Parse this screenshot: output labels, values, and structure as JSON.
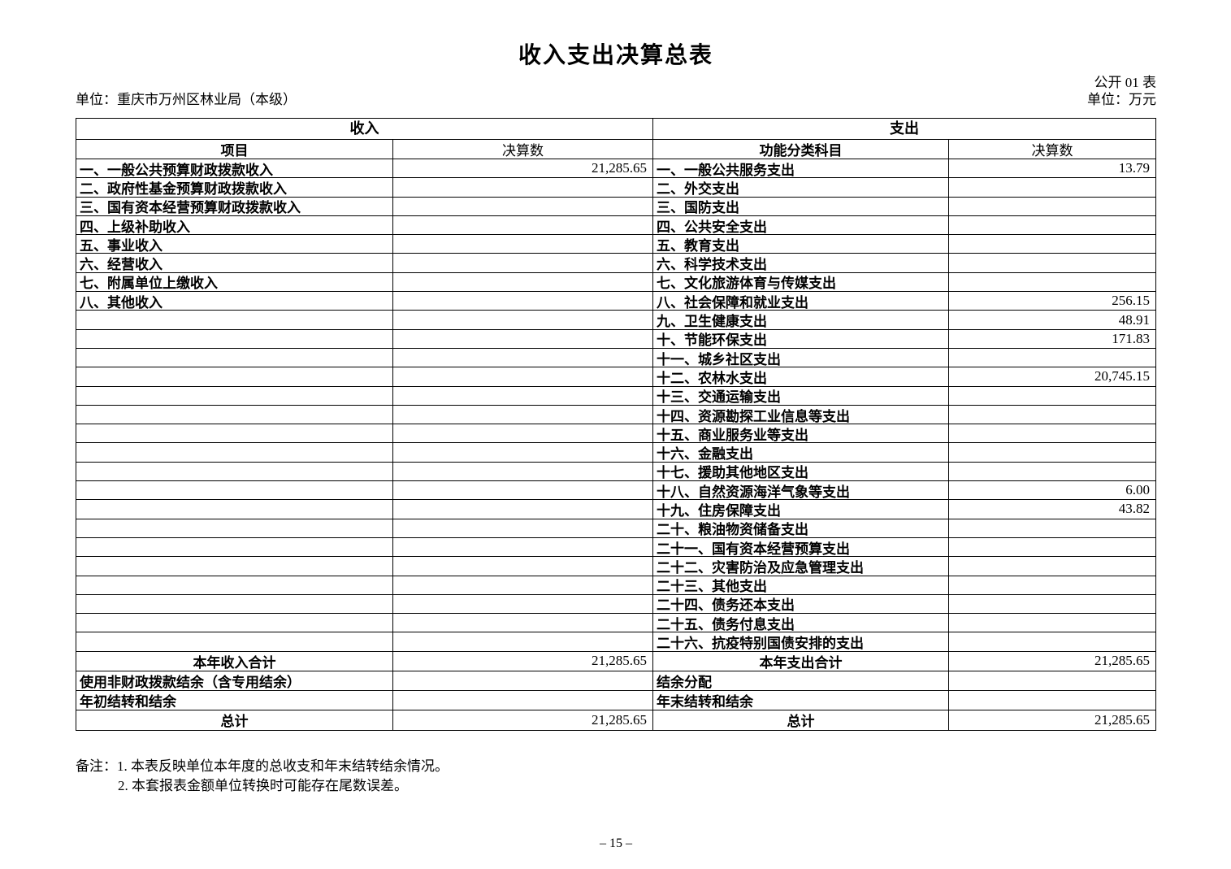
{
  "title": "收入支出决算总表",
  "meta": {
    "table_code": "公开 01 表",
    "org_unit": "单位：重庆市万州区林业局（本级）",
    "currency_unit": "单位：万元"
  },
  "table": {
    "income": {
      "section_title": "收入",
      "columns": {
        "item": "项目",
        "amount": "决算数"
      },
      "rows": [
        {
          "label": "一、一般公共预算财政拨款收入",
          "value": "21,285.65"
        },
        {
          "label": "二、政府性基金预算财政拨款收入",
          "value": ""
        },
        {
          "label": "三、国有资本经营预算财政拨款收入",
          "value": ""
        },
        {
          "label": "四、上级补助收入",
          "value": ""
        },
        {
          "label": "五、事业收入",
          "value": ""
        },
        {
          "label": "六、经营收入",
          "value": ""
        },
        {
          "label": "七、附属单位上缴收入",
          "value": ""
        },
        {
          "label": "八、其他收入",
          "value": ""
        },
        {
          "label": "",
          "value": ""
        },
        {
          "label": "",
          "value": ""
        },
        {
          "label": "",
          "value": ""
        },
        {
          "label": "",
          "value": ""
        },
        {
          "label": "",
          "value": ""
        },
        {
          "label": "",
          "value": ""
        },
        {
          "label": "",
          "value": ""
        },
        {
          "label": "",
          "value": ""
        },
        {
          "label": "",
          "value": ""
        },
        {
          "label": "",
          "value": ""
        },
        {
          "label": "",
          "value": ""
        },
        {
          "label": "",
          "value": ""
        },
        {
          "label": "",
          "value": ""
        },
        {
          "label": "",
          "value": ""
        },
        {
          "label": "",
          "value": ""
        },
        {
          "label": "",
          "value": ""
        },
        {
          "label": "",
          "value": ""
        },
        {
          "label": "",
          "value": ""
        }
      ],
      "summary": [
        {
          "label": "本年收入合计",
          "value": "21,285.65",
          "center": true
        },
        {
          "label": "使用非财政拨款结余（含专用结余）",
          "value": ""
        },
        {
          "label": "年初结转和结余",
          "value": ""
        },
        {
          "label": "总计",
          "value": "21,285.65",
          "center": true
        }
      ]
    },
    "expense": {
      "section_title": "支出",
      "columns": {
        "item": "功能分类科目",
        "amount": "决算数"
      },
      "rows": [
        {
          "label": "一、一般公共服务支出",
          "value": "13.79"
        },
        {
          "label": "二、外交支出",
          "value": ""
        },
        {
          "label": "三、国防支出",
          "value": ""
        },
        {
          "label": "四、公共安全支出",
          "value": ""
        },
        {
          "label": "五、教育支出",
          "value": ""
        },
        {
          "label": "六、科学技术支出",
          "value": ""
        },
        {
          "label": "七、文化旅游体育与传媒支出",
          "value": ""
        },
        {
          "label": "八、社会保障和就业支出",
          "value": "256.15"
        },
        {
          "label": "九、卫生健康支出",
          "value": "48.91"
        },
        {
          "label": "十、节能环保支出",
          "value": "171.83"
        },
        {
          "label": "十一、城乡社区支出",
          "value": ""
        },
        {
          "label": "十二、农林水支出",
          "value": "20,745.15"
        },
        {
          "label": "十三、交通运输支出",
          "value": ""
        },
        {
          "label": "十四、资源勘探工业信息等支出",
          "value": ""
        },
        {
          "label": "十五、商业服务业等支出",
          "value": ""
        },
        {
          "label": "十六、金融支出",
          "value": ""
        },
        {
          "label": "十七、援助其他地区支出",
          "value": ""
        },
        {
          "label": "十八、自然资源海洋气象等支出",
          "value": "6.00"
        },
        {
          "label": "十九、住房保障支出",
          "value": "43.82"
        },
        {
          "label": "二十、粮油物资储备支出",
          "value": ""
        },
        {
          "label": "二十一、国有资本经营预算支出",
          "value": ""
        },
        {
          "label": "二十二、灾害防治及应急管理支出",
          "value": ""
        },
        {
          "label": "二十三、其他支出",
          "value": ""
        },
        {
          "label": "二十四、债务还本支出",
          "value": ""
        },
        {
          "label": "二十五、债务付息支出",
          "value": ""
        },
        {
          "label": "二十六、抗疫特别国债安排的支出",
          "value": ""
        }
      ],
      "summary": [
        {
          "label": "本年支出合计",
          "value": "21,285.65",
          "center": true
        },
        {
          "label": "结余分配",
          "value": ""
        },
        {
          "label": "年末结转和结余",
          "value": ""
        },
        {
          "label": "总计",
          "value": "21,285.65",
          "center": true
        }
      ]
    }
  },
  "notes": {
    "prefix": "备注：",
    "lines": [
      "1. 本表反映单位本年度的总收支和年末结转结余情况。",
      "2. 本套报表金额单位转换时可能存在尾数误差。"
    ]
  },
  "page_number": "– 15 –"
}
